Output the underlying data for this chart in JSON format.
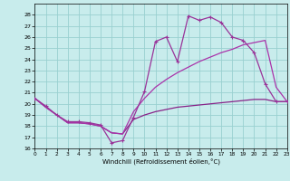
{
  "xlabel": "Windchill (Refroidissement éolien,°C)",
  "x_ticks": [
    0,
    1,
    2,
    3,
    4,
    5,
    6,
    7,
    8,
    9,
    10,
    11,
    12,
    13,
    14,
    15,
    16,
    17,
    18,
    19,
    20,
    21,
    22,
    23
  ],
  "ylim": [
    16,
    29
  ],
  "xlim": [
    0,
    23
  ],
  "y_ticks": [
    16,
    17,
    18,
    19,
    20,
    21,
    22,
    23,
    24,
    25,
    26,
    27,
    28
  ],
  "background_color": "#c8ecec",
  "grid_color": "#99d0d0",
  "s1_y": [
    20.5,
    19.8,
    19.0,
    18.4,
    18.4,
    18.3,
    18.1,
    16.5,
    16.7,
    18.8,
    21.1,
    25.6,
    26.0,
    23.8,
    27.9,
    27.5,
    27.8,
    27.3,
    26.0,
    25.7,
    24.6,
    21.8,
    20.2,
    20.2
  ],
  "s2_y": [
    20.5,
    19.7,
    19.0,
    18.3,
    18.3,
    18.2,
    18.0,
    17.4,
    17.3,
    18.6,
    19.0,
    19.3,
    19.5,
    19.7,
    19.8,
    19.9,
    20.0,
    20.1,
    20.2,
    20.3,
    20.4,
    20.4,
    20.2,
    20.2
  ],
  "s3_y": [
    20.5,
    19.7,
    19.0,
    18.3,
    18.3,
    18.2,
    18.0,
    17.4,
    17.3,
    19.3,
    20.5,
    21.5,
    22.2,
    22.8,
    23.3,
    23.8,
    24.2,
    24.6,
    24.9,
    25.3,
    25.5,
    25.7,
    21.5,
    20.2
  ],
  "lc1": "#993399",
  "lc2": "#882288",
  "lc3": "#aa33aa"
}
